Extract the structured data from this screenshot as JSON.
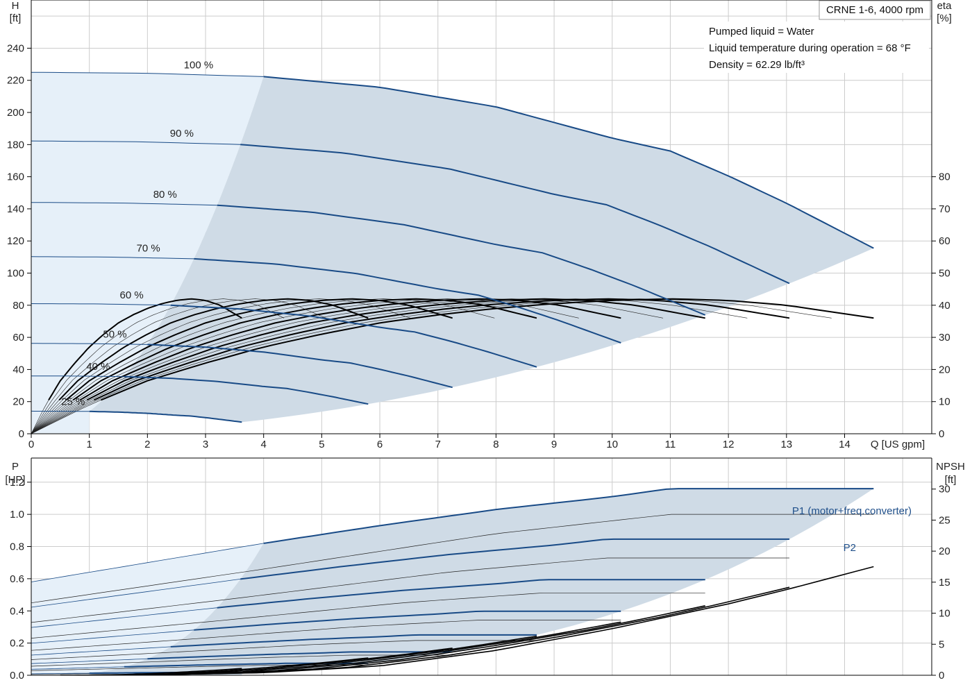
{
  "colors": {
    "curve": "#184a86",
    "eff": "#000000",
    "thin": "#222222",
    "region": "#cfdbe6",
    "region_light": "#e6f0f9",
    "grid": "#cccccc",
    "axis": "#000000"
  },
  "title_box": "CRNE 1-6, 4000 rpm",
  "notes": [
    "Pumped liquid = Water",
    "Liquid temperature during operation = 68 °F",
    "Density = 62.29 lb/ft³"
  ],
  "chart_data": [
    {
      "type": "line",
      "xlabel": "Q [US gpm]",
      "ylabel_lines": [
        "H",
        "[ft]"
      ],
      "y2label_lines": [
        "eta",
        "[%]"
      ],
      "xlim": [
        0,
        15.5
      ],
      "ylim": [
        0,
        270
      ],
      "y2lim": [
        0,
        135
      ],
      "grid": true,
      "x_ticks": [
        0,
        1,
        2,
        3,
        4,
        5,
        6,
        7,
        8,
        9,
        10,
        11,
        12,
        13,
        14
      ],
      "y_ticks": [
        0,
        20,
        40,
        60,
        80,
        100,
        120,
        140,
        160,
        180,
        200,
        220,
        240
      ],
      "y2_ticks": [
        0,
        10,
        20,
        30,
        40,
        50,
        60,
        70,
        80
      ],
      "speed_curves": [
        {
          "label": "100 %",
          "scale": 1.0
        },
        {
          "label": "90 %",
          "scale": 0.9
        },
        {
          "label": "80 %",
          "scale": 0.8
        },
        {
          "label": "70 %",
          "scale": 0.7
        },
        {
          "label": "60 %",
          "scale": 0.6
        },
        {
          "label": "50 %",
          "scale": 0.5
        },
        {
          "label": "40 %",
          "scale": 0.4
        },
        {
          "label": "25 %",
          "scale": 0.25
        }
      ],
      "head_curve_100": {
        "q": [
          0,
          2,
          4,
          6,
          8,
          10,
          11,
          12,
          13,
          14.5
        ],
        "h": [
          225,
          224.4,
          222.3,
          215.7,
          203.5,
          184,
          176,
          160.5,
          143.5,
          115.5
        ]
      },
      "efficiency_curve_100": {
        "q": [
          0,
          1,
          2,
          3,
          4,
          5,
          6,
          7,
          8,
          9,
          10,
          11,
          12,
          13,
          14.5
        ],
        "eta": [
          0,
          9,
          16.5,
          22,
          27,
          31,
          34.5,
          37,
          39,
          40.5,
          41.5,
          42,
          41.5,
          40,
          36
        ]
      },
      "min_operating_flow_100": 4.0
    },
    {
      "type": "line",
      "xlabel": "",
      "ylabel_lines": [
        "P",
        "[HP]"
      ],
      "y2label_lines": [
        "NPSH",
        "[ft]"
      ],
      "xlim": [
        0,
        15.5
      ],
      "ylim": [
        0,
        1.35
      ],
      "y2lim": [
        0,
        35
      ],
      "grid": true,
      "y_ticks": [
        "0.0",
        "0.2",
        "0.4",
        "0.6",
        "0.8",
        "1.0",
        "1.2"
      ],
      "y2_ticks": [
        0,
        5,
        10,
        15,
        20,
        25,
        30
      ],
      "series": [
        {
          "name": "P1 (motor+freq.converter)",
          "q": [
            0,
            4,
            6,
            8,
            10,
            11,
            12,
            13,
            14.5
          ],
          "p": [
            0.58,
            0.82,
            0.93,
            1.03,
            1.11,
            1.16,
            1.16,
            1.16,
            1.16
          ]
        },
        {
          "name": "P2",
          "q": [
            0,
            4,
            6,
            8,
            10,
            11,
            12,
            13,
            14.5
          ],
          "p": [
            0.45,
            0.66,
            0.77,
            0.88,
            0.96,
            1.0,
            1.0,
            1.0,
            1.0
          ]
        }
      ],
      "npsh_100": {
        "q": [
          0,
          2,
          4,
          6,
          8,
          10,
          12,
          13,
          14.5
        ],
        "npsh": [
          0,
          0.1,
          0.4,
          1.5,
          4,
          7.5,
          11.5,
          13.8,
          17.5
        ]
      }
    }
  ]
}
